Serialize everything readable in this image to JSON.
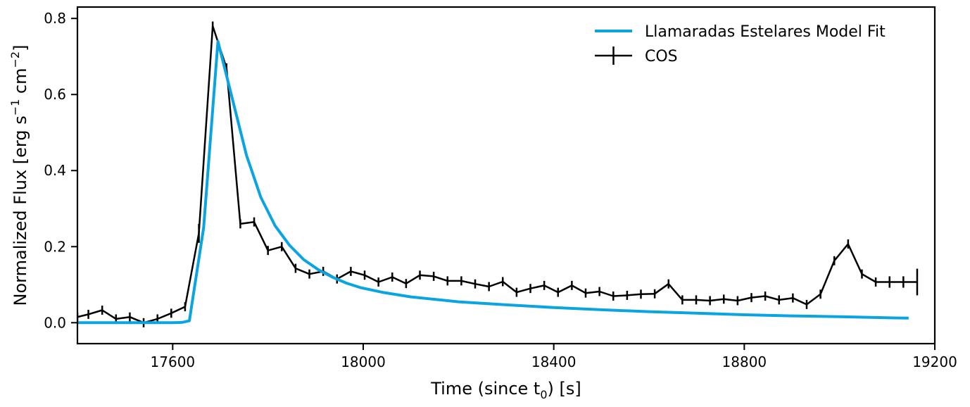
{
  "chart_data": {
    "type": "line",
    "xlabel": "Time (since t",
    "xlabel_sub": "0",
    "xlabel_suffix": ") [s]",
    "ylabel": "Normalized Flux [erg s",
    "ylabel_sup1": "−1",
    "ylabel_mid": " cm",
    "ylabel_sup2": "−2",
    "ylabel_end": "]",
    "xlim": [
      17400,
      19200
    ],
    "ylim": [
      -0.055,
      0.83
    ],
    "xticks": [
      17600,
      18000,
      18400,
      18800,
      19200
    ],
    "xtick_labels": [
      "17600",
      "18000",
      "18400",
      "18800",
      "19200"
    ],
    "yticks": [
      0.0,
      0.2,
      0.4,
      0.6,
      0.8
    ],
    "ytick_labels": [
      "0.0",
      "0.2",
      "0.4",
      "0.6",
      "0.8"
    ],
    "legend_position": "upper-right",
    "series": [
      {
        "name": "Llamaradas Estelares Model Fit",
        "color": "#0aa5e0",
        "kind": "line",
        "x": [
          17400,
          17500,
          17600,
          17620,
          17635,
          17665,
          17695,
          17725,
          17755,
          17785,
          17815,
          17845,
          17875,
          17905,
          17935,
          17965,
          17995,
          18040,
          18100,
          18200,
          18300,
          18400,
          18500,
          18600,
          18700,
          18800,
          18900,
          19000,
          19100,
          19145
        ],
        "y": [
          0.0,
          0.0,
          0.0,
          0.001,
          0.005,
          0.25,
          0.74,
          0.59,
          0.44,
          0.33,
          0.255,
          0.204,
          0.166,
          0.14,
          0.12,
          0.104,
          0.092,
          0.08,
          0.068,
          0.055,
          0.047,
          0.04,
          0.034,
          0.029,
          0.025,
          0.021,
          0.018,
          0.016,
          0.013,
          0.012
        ]
      },
      {
        "name": "COS",
        "color": "#000000",
        "kind": "errorbar",
        "x": [
          17400,
          17423,
          17452,
          17481,
          17510,
          17539,
          17568,
          17597,
          17626,
          17655,
          17684,
          17713,
          17742,
          17771,
          17800,
          17829,
          17858,
          17887,
          17916,
          17945,
          17974,
          18003,
          18032,
          18061,
          18090,
          18119,
          18148,
          18177,
          18206,
          18235,
          18264,
          18293,
          18322,
          18351,
          18380,
          18409,
          18438,
          18467,
          18496,
          18525,
          18554,
          18583,
          18612,
          18641,
          18670,
          18699,
          18728,
          18757,
          18786,
          18815,
          18844,
          18873,
          18902,
          18931,
          18960,
          18989,
          19018,
          19047,
          19076,
          19105,
          19134,
          19163
        ],
        "y": [
          0.015,
          0.022,
          0.033,
          0.01,
          0.015,
          0.0,
          0.01,
          0.025,
          0.042,
          0.235,
          0.78,
          0.67,
          0.26,
          0.265,
          0.19,
          0.2,
          0.143,
          0.128,
          0.135,
          0.115,
          0.135,
          0.125,
          0.107,
          0.12,
          0.103,
          0.125,
          0.122,
          0.11,
          0.11,
          0.102,
          0.095,
          0.108,
          0.08,
          0.09,
          0.098,
          0.08,
          0.098,
          0.078,
          0.082,
          0.07,
          0.072,
          0.075,
          0.076,
          0.102,
          0.06,
          0.06,
          0.058,
          0.062,
          0.058,
          0.066,
          0.07,
          0.06,
          0.065,
          0.048,
          0.075,
          0.163,
          0.207,
          0.128,
          0.107,
          0.107,
          0.107,
          0.107
        ],
        "yerr": [
          0.012,
          0.012,
          0.012,
          0.012,
          0.012,
          0.012,
          0.012,
          0.012,
          0.012,
          0.025,
          0.012,
          0.012,
          0.012,
          0.012,
          0.012,
          0.012,
          0.012,
          0.012,
          0.012,
          0.012,
          0.012,
          0.012,
          0.012,
          0.012,
          0.012,
          0.012,
          0.012,
          0.012,
          0.012,
          0.012,
          0.012,
          0.012,
          0.012,
          0.012,
          0.012,
          0.012,
          0.012,
          0.012,
          0.012,
          0.012,
          0.012,
          0.012,
          0.012,
          0.012,
          0.012,
          0.012,
          0.012,
          0.012,
          0.012,
          0.012,
          0.012,
          0.012,
          0.012,
          0.012,
          0.012,
          0.012,
          0.012,
          0.012,
          0.012,
          0.015,
          0.015,
          0.035
        ]
      }
    ]
  }
}
